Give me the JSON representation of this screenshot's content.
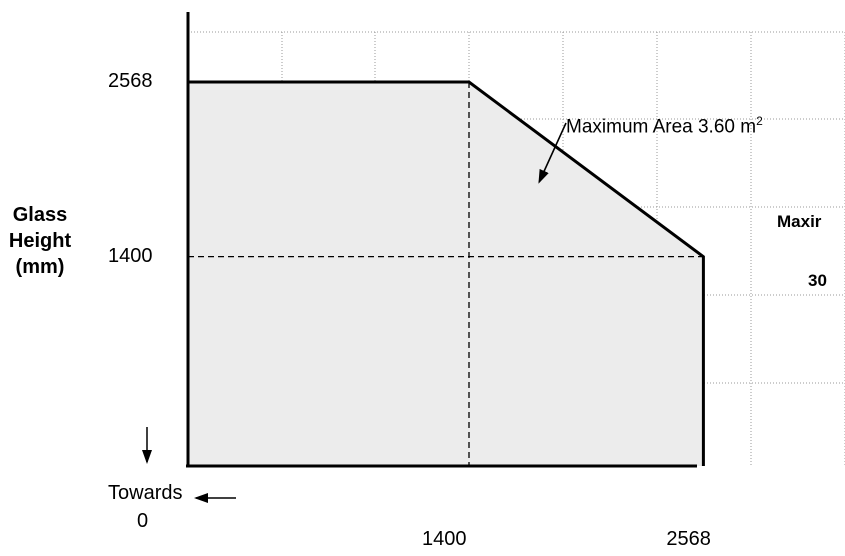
{
  "chart_data": {
    "type": "area",
    "title": "",
    "ylabel": [
      "Glass",
      "Height",
      "(mm)"
    ],
    "xlabel": "",
    "x_ticks": [
      "1400",
      "2568"
    ],
    "y_ticks": [
      "2568",
      "1400"
    ],
    "grid": true,
    "envelope": [
      {
        "x": 0,
        "y": 2568
      },
      {
        "x": 1400,
        "y": 2568
      },
      {
        "x": 2568,
        "y": 1400
      },
      {
        "x": 2568,
        "y": 0
      }
    ],
    "reference_lines": [
      {
        "axis": "x",
        "value": 1400,
        "style": "dashed"
      },
      {
        "axis": "y",
        "value": 1400,
        "style": "dashed"
      }
    ],
    "annotation": {
      "text": "Maximum Area 3.60 m",
      "superscript": "2",
      "points_to": {
        "x": 1750,
        "y": 1900
      }
    },
    "origin_label": [
      "Towards",
      "0"
    ],
    "side_text": [
      "Maxir",
      "30"
    ]
  }
}
